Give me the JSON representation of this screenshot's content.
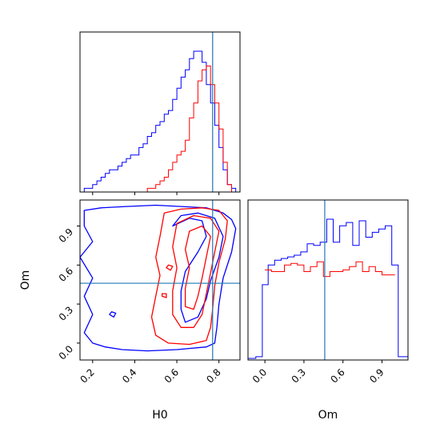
{
  "chart_data": [
    {
      "type": "histogram",
      "panel": "top-left marginal",
      "parameter": "H0",
      "xlim": [
        0.14,
        0.9
      ],
      "truth_marker": 0.77,
      "y_ticks_shown": false,
      "x_tick_labels_shown": false,
      "series": [
        {
          "color": "#0000ff",
          "bin_edges": [
            0.14,
            0.16,
            0.18,
            0.2,
            0.22,
            0.24,
            0.26,
            0.28,
            0.3,
            0.32,
            0.34,
            0.36,
            0.38,
            0.4,
            0.42,
            0.44,
            0.46,
            0.48,
            0.5,
            0.52,
            0.54,
            0.56,
            0.58,
            0.6,
            0.62,
            0.64,
            0.66,
            0.68,
            0.7,
            0.72,
            0.74,
            0.76,
            0.78,
            0.8,
            0.82,
            0.84,
            0.86,
            0.88,
            0.9
          ],
          "counts": [
            0,
            1,
            1,
            2,
            3,
            4,
            5,
            6,
            6,
            7,
            8,
            9,
            10,
            10,
            12,
            13,
            15,
            16,
            18,
            19,
            21,
            22,
            25,
            28,
            31,
            33,
            36,
            38,
            38,
            35,
            29,
            24,
            18,
            12,
            6,
            2,
            1,
            0
          ]
        },
        {
          "color": "#ff0000",
          "bin_edges": [
            0.14,
            0.16,
            0.18,
            0.2,
            0.22,
            0.24,
            0.26,
            0.28,
            0.3,
            0.32,
            0.34,
            0.36,
            0.38,
            0.4,
            0.42,
            0.44,
            0.46,
            0.48,
            0.5,
            0.52,
            0.54,
            0.56,
            0.58,
            0.6,
            0.62,
            0.64,
            0.66,
            0.68,
            0.7,
            0.72,
            0.74,
            0.76,
            0.78,
            0.8,
            0.82,
            0.84,
            0.86,
            0.88,
            0.9
          ],
          "counts": [
            0,
            0,
            0,
            0,
            0,
            0,
            0,
            0,
            0,
            0,
            0,
            0,
            0,
            0,
            0,
            0,
            1,
            1,
            2,
            3,
            4,
            6,
            8,
            10,
            11,
            14,
            20,
            24,
            30,
            33,
            34,
            29,
            24,
            17,
            8,
            2,
            0,
            0
          ]
        }
      ]
    },
    {
      "type": "histogram",
      "panel": "bottom-right marginal",
      "parameter": "Om",
      "xlim": [
        -0.13,
        1.1
      ],
      "truth_marker": 0.46,
      "x_ticks": [
        "0.0",
        "0.3",
        "0.6",
        "0.9"
      ],
      "x_tick_values": [
        0.0,
        0.3,
        0.6,
        0.9
      ],
      "xlabel": "Om",
      "series": [
        {
          "color": "#0000ff",
          "bin_edges": [
            -0.13,
            -0.07,
            -0.02,
            0.025,
            0.075,
            0.125,
            0.175,
            0.225,
            0.275,
            0.325,
            0.375,
            0.425,
            0.475,
            0.525,
            0.575,
            0.625,
            0.675,
            0.725,
            0.775,
            0.825,
            0.875,
            0.925,
            0.975,
            1.025,
            1.1
          ],
          "counts": [
            1,
            2,
            46,
            58,
            61,
            62,
            63,
            64,
            66,
            71,
            70,
            72,
            86,
            72,
            82,
            84,
            70,
            85,
            75,
            78,
            80,
            82,
            58,
            2
          ]
        },
        {
          "color": "#ff0000",
          "bin_edges": [
            0.0,
            0.05,
            0.1,
            0.15,
            0.2,
            0.25,
            0.3,
            0.35,
            0.4,
            0.45,
            0.5,
            0.55,
            0.6,
            0.65,
            0.7,
            0.75,
            0.8,
            0.85,
            0.9,
            0.95,
            1.0
          ],
          "counts": [
            55,
            54,
            54,
            58,
            59,
            58,
            54,
            57,
            60,
            51,
            54,
            54,
            55,
            57,
            60,
            54,
            57,
            54,
            52,
            52
          ]
        }
      ]
    },
    {
      "type": "contour",
      "panel": "bottom-left joint",
      "xlim": [
        0.14,
        0.9
      ],
      "ylim": [
        -0.13,
        1.1
      ],
      "x_ticks": [
        "0.2",
        "0.4",
        "0.6",
        "0.8"
      ],
      "x_tick_values": [
        0.2,
        0.4,
        0.6,
        0.8
      ],
      "y_ticks": [
        "0.0",
        "0.3",
        "0.6",
        "0.9"
      ],
      "y_tick_values": [
        0.0,
        0.3,
        0.6,
        0.9
      ],
      "xlabel": "H0",
      "ylabel": "Om",
      "truth": {
        "H0": 0.77,
        "Om": 0.46
      },
      "series": [
        {
          "color": "#0000ff",
          "contours": [
            [
              [
                0.16,
                1.02
              ],
              [
                0.24,
                1.04
              ],
              [
                0.36,
                1.05
              ],
              [
                0.5,
                1.06
              ],
              [
                0.62,
                1.05
              ],
              [
                0.74,
                1.04
              ],
              [
                0.82,
                1.0
              ],
              [
                0.86,
                0.95
              ],
              [
                0.88,
                0.88
              ],
              [
                0.86,
                0.7
              ],
              [
                0.82,
                0.5
              ],
              [
                0.8,
                0.3
              ],
              [
                0.79,
                0.12
              ],
              [
                0.78,
                0.0
              ],
              [
                0.74,
                -0.03
              ],
              [
                0.6,
                -0.05
              ],
              [
                0.46,
                -0.06
              ],
              [
                0.34,
                -0.05
              ],
              [
                0.26,
                -0.03
              ],
              [
                0.2,
                0.0
              ],
              [
                0.16,
                0.08
              ],
              [
                0.2,
                0.22
              ],
              [
                0.16,
                0.36
              ],
              [
                0.2,
                0.5
              ],
              [
                0.14,
                0.66
              ],
              [
                0.2,
                0.78
              ],
              [
                0.16,
                0.9
              ],
              [
                0.16,
                1.02
              ]
            ],
            [
              [
                0.58,
                0.9
              ],
              [
                0.66,
                0.96
              ],
              [
                0.72,
                0.94
              ],
              [
                0.74,
                0.82
              ],
              [
                0.7,
                0.7
              ],
              [
                0.64,
                0.55
              ],
              [
                0.62,
                0.4
              ],
              [
                0.62,
                0.26
              ],
              [
                0.64,
                0.16
              ],
              [
                0.7,
                0.2
              ],
              [
                0.74,
                0.34
              ],
              [
                0.76,
                0.48
              ],
              [
                0.8,
                0.66
              ],
              [
                0.82,
                0.82
              ],
              [
                0.78,
                0.96
              ],
              [
                0.7,
                1.0
              ],
              [
                0.62,
                0.98
              ],
              [
                0.58,
                0.9
              ]
            ],
            [
              [
                0.28,
                0.22
              ],
              [
                0.3,
                0.2
              ],
              [
                0.31,
                0.23
              ],
              [
                0.29,
                0.24
              ],
              [
                0.28,
                0.22
              ]
            ]
          ]
        },
        {
          "color": "#ff0000",
          "contours": [
            [
              [
                0.54,
                1.0
              ],
              [
                0.62,
                1.03
              ],
              [
                0.72,
                1.04
              ],
              [
                0.8,
                1.02
              ],
              [
                0.84,
                0.94
              ],
              [
                0.83,
                0.8
              ],
              [
                0.8,
                0.62
              ],
              [
                0.78,
                0.44
              ],
              [
                0.77,
                0.26
              ],
              [
                0.76,
                0.12
              ],
              [
                0.74,
                0.02
              ],
              [
                0.66,
                -0.01
              ],
              [
                0.56,
                0.0
              ],
              [
                0.5,
                0.06
              ],
              [
                0.48,
                0.2
              ],
              [
                0.5,
                0.36
              ],
              [
                0.52,
                0.52
              ],
              [
                0.5,
                0.66
              ],
              [
                0.52,
                0.82
              ],
              [
                0.54,
                1.0
              ]
            ],
            [
              [
                0.6,
                0.92
              ],
              [
                0.68,
                0.98
              ],
              [
                0.76,
                0.96
              ],
              [
                0.8,
                0.86
              ],
              [
                0.78,
                0.7
              ],
              [
                0.76,
                0.54
              ],
              [
                0.74,
                0.38
              ],
              [
                0.72,
                0.22
              ],
              [
                0.68,
                0.12
              ],
              [
                0.62,
                0.12
              ],
              [
                0.58,
                0.22
              ],
              [
                0.58,
                0.4
              ],
              [
                0.6,
                0.58
              ],
              [
                0.58,
                0.74
              ],
              [
                0.6,
                0.92
              ]
            ],
            [
              [
                0.66,
                0.86
              ],
              [
                0.72,
                0.9
              ],
              [
                0.76,
                0.82
              ],
              [
                0.74,
                0.66
              ],
              [
                0.72,
                0.5
              ],
              [
                0.7,
                0.36
              ],
              [
                0.68,
                0.26
              ],
              [
                0.64,
                0.28
              ],
              [
                0.64,
                0.42
              ],
              [
                0.66,
                0.58
              ],
              [
                0.64,
                0.72
              ],
              [
                0.66,
                0.86
              ]
            ],
            [
              [
                0.55,
                0.58
              ],
              [
                0.57,
                0.56
              ],
              [
                0.58,
                0.59
              ],
              [
                0.56,
                0.6
              ],
              [
                0.55,
                0.58
              ]
            ],
            [
              [
                0.53,
                0.36
              ],
              [
                0.55,
                0.35
              ],
              [
                0.55,
                0.38
              ],
              [
                0.53,
                0.38
              ],
              [
                0.53,
                0.36
              ]
            ]
          ]
        }
      ]
    }
  ],
  "colors": {
    "blue_series": "#0000ff",
    "red_series": "#ff0000",
    "truth_line": "#1f77b4",
    "axes": "#000000"
  }
}
